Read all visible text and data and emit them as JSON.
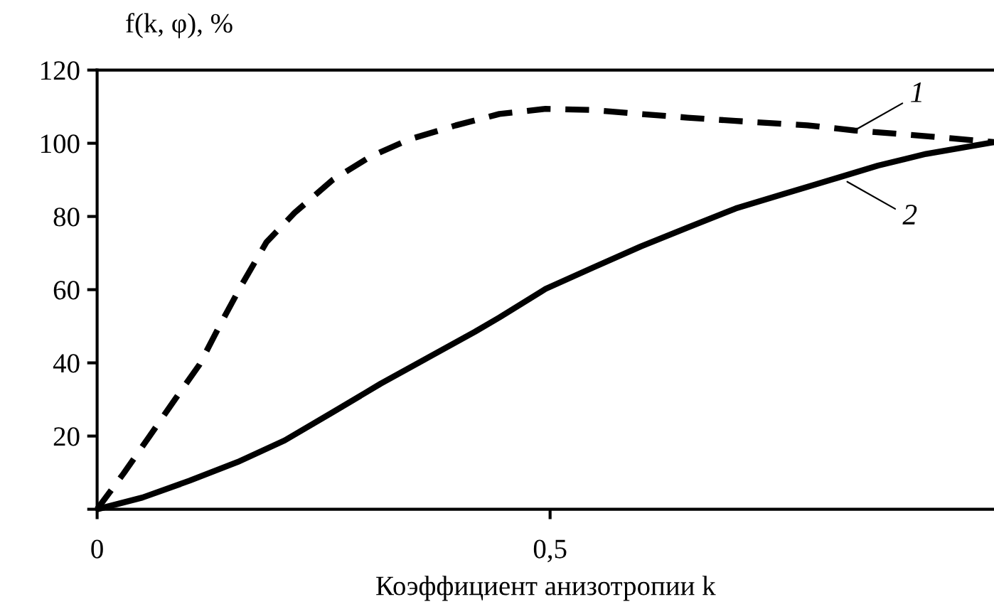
{
  "chart_data": {
    "type": "line",
    "ylabel": "f(k, φ), %",
    "xlabel": "Коэффициент анизотропии k",
    "xlim": [
      0,
      0.99
    ],
    "xticks": [
      0,
      {
        "value": 0.5,
        "label": "0,5"
      }
    ],
    "ylim": [
      0,
      120
    ],
    "yticks": [
      {
        "value": 0,
        "label": null
      },
      20,
      40,
      60,
      80,
      100,
      120
    ],
    "grid": false,
    "marker": "none",
    "series": [
      {
        "color": "#000000",
        "line_style": "dashed",
        "x": [
          0,
          0.029,
          0.058,
          0.087,
          0.113,
          0.137,
          0.16,
          0.187,
          0.218,
          0.26,
          0.302,
          0.344,
          0.396,
          0.444,
          0.495,
          0.547,
          0.6,
          0.652,
          0.705,
          0.784,
          0.836,
          0.888,
          0.941,
          0.99
        ],
        "values": [
          0,
          9.7,
          20,
          30.4,
          39.5,
          51,
          61.5,
          73,
          81,
          90,
          96.4,
          101,
          104.9,
          108,
          109.4,
          109.1,
          108,
          107,
          106.1,
          104.9,
          103.5,
          102.5,
          101.4,
          100.3
        ]
      },
      {
        "color": "#000000",
        "line_style": "solid",
        "x": [
          0,
          0.05,
          0.102,
          0.155,
          0.207,
          0.26,
          0.313,
          0.365,
          0.417,
          0.444,
          0.495,
          0.547,
          0.6,
          0.652,
          0.705,
          0.757,
          0.81,
          0.862,
          0.915,
          0.99
        ],
        "values": [
          0,
          3.2,
          7.8,
          12.9,
          18.8,
          26.5,
          34.3,
          41.4,
          48.5,
          52.4,
          60.2,
          66,
          71.8,
          77,
          82.2,
          86.1,
          90,
          93.9,
          97.1,
          100.3
        ]
      }
    ],
    "annotations": [
      {
        "text": "1",
        "x": 0.836,
        "y": 103.5
      },
      {
        "text": "2",
        "x": 0.828,
        "y": 89.5
      }
    ]
  }
}
